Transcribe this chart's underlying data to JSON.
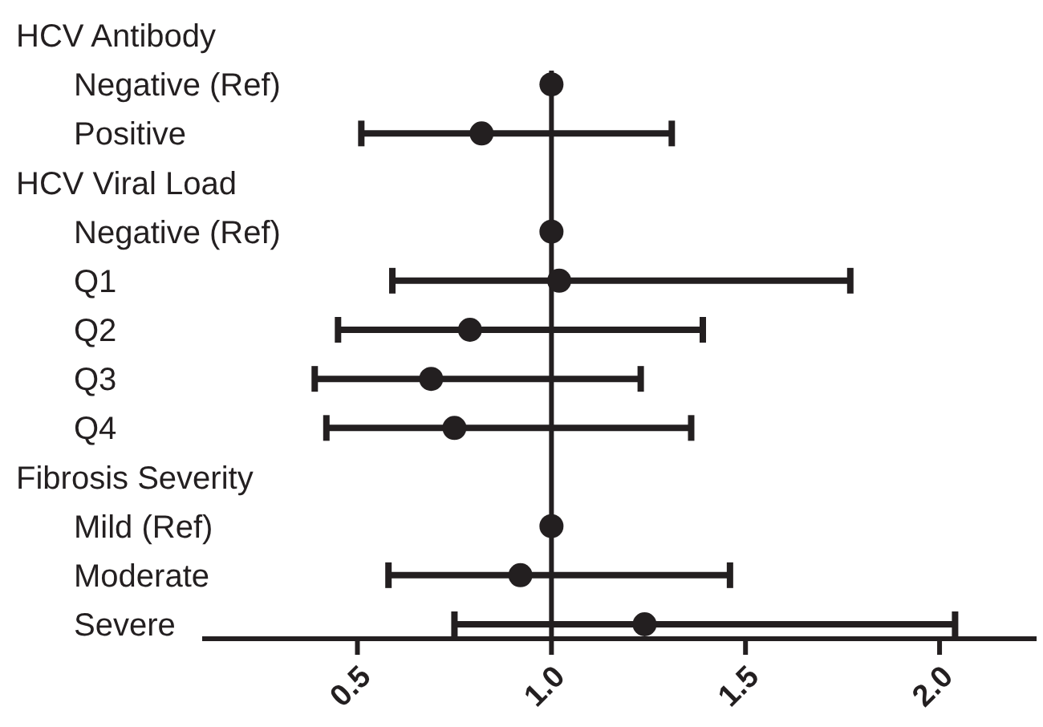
{
  "chart_data": {
    "type": "scatter",
    "orientation": "horizontal",
    "marker": "circle",
    "categories": [
      "HCV Antibody",
      "Negative (Ref)",
      "Positive",
      "HCV Viral Load",
      "Negative (Ref)",
      "Q1",
      "Q2",
      "Q3",
      "Q4",
      "Fibrosis Severity",
      "Mild (Ref)",
      "Moderate",
      "Severe"
    ],
    "series": [
      {
        "color": "#231f20",
        "values": [
          null,
          1,
          0.82,
          null,
          1,
          1.02,
          0.79,
          0.69,
          0.75,
          null,
          1,
          0.92,
          1.24
        ],
        "errors": [
          null,
          null,
          [
            0.51,
            1.31
          ],
          null,
          null,
          [
            0.59,
            1.77
          ],
          [
            0.45,
            1.39
          ],
          [
            0.39,
            1.23
          ],
          [
            0.42,
            1.36
          ],
          null,
          null,
          [
            0.58,
            1.46
          ],
          [
            0.75,
            2.04
          ]
        ]
      }
    ],
    "xlim": [
      0.1,
      2.25
    ],
    "xticks": [
      0.5,
      {
        "value": 1,
        "label": "1.0"
      },
      1.5,
      {
        "value": 2,
        "label": "2.0"
      }
    ],
    "ref_lines": [
      {
        "axis": "x",
        "value": 1,
        "color": "#231f20"
      }
    ],
    "grid": false
  }
}
